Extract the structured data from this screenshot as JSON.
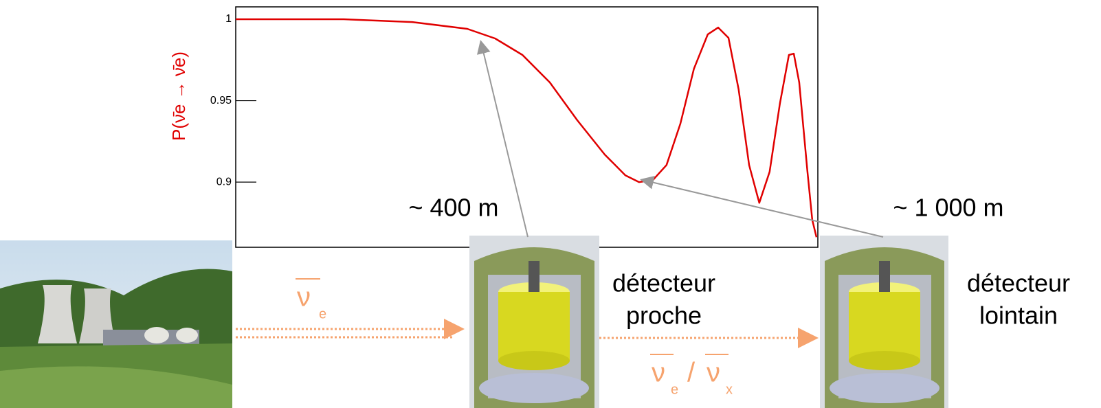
{
  "chart_data": {
    "type": "line",
    "ylabel": "P(ν̄e → ν̄e)",
    "x": [
      0.1,
      0.288,
      0.564,
      0.967,
      1.27,
      1.66,
      2.17,
      2.84,
      3.72,
      4.55,
      5.2,
      5.96,
      6.81,
      7.8,
      8.91,
      10.2,
      11.3,
      12.5,
      13.8,
      15.3,
      16.9,
      18.7,
      20.7,
      22.6,
      23.7,
      25.0,
      27.1,
      28.4,
      29.6
    ],
    "values": [
      1,
      1,
      0.9983,
      0.9941,
      0.9882,
      0.9781,
      0.9612,
      0.938,
      0.9169,
      0.9042,
      0.9,
      0.9013,
      0.9105,
      0.9359,
      0.9696,
      0.9907,
      0.9949,
      0.9886,
      0.957,
      0.9105,
      0.8873,
      0.9063,
      0.9485,
      0.9781,
      0.9789,
      0.9612,
      0.9063,
      0.8768,
      0.8662
    ],
    "color": "#e00000",
    "xscale": "log",
    "xlim": [
      0.1,
      30
    ],
    "ylim": [
      0.86,
      1.0076
    ],
    "yticks": [
      0.9,
      0.95,
      1
    ]
  },
  "annotations": {
    "near_distance": "~ 400 m",
    "far_distance": "~ 1 000 m"
  },
  "near_detector": [
    "détecteur",
    "proche"
  ],
  "far_detector": [
    "détecteur",
    "lointain"
  ],
  "source_flux": {
    "symbol": "ν",
    "subscript": "e"
  },
  "detected_flux": {
    "symbol_1": "ν",
    "subscript_1": "e",
    "separator": "/",
    "symbol_2": "ν",
    "subscript_2": "x"
  }
}
